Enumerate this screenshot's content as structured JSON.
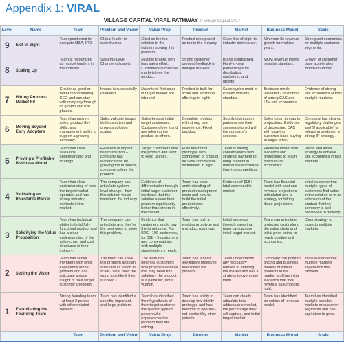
{
  "heading": {
    "appendix": "Appendix 1:",
    "title": "VIRAL"
  },
  "subtitle": {
    "main": "VILLAGE CAPITAL VIRAL PATHWAY",
    "copyright": "© Village Capital 2017"
  },
  "columns": [
    "Level",
    "Name",
    "Team",
    "Problem and Vision",
    "Value Prop",
    "Product",
    "Market",
    "Business Model",
    "Scale"
  ],
  "row_colors": [
    "#e8e3f0",
    "#e8e3f0",
    "#fef8dc",
    "#fef8dc",
    "#dff0dc",
    "#dff0dc",
    "#dff0dc",
    "#fce4e4",
    "#fce4e4"
  ],
  "rows": [
    {
      "level": "9",
      "name": "Exit in Sight",
      "cells": [
        "Team positioned to navigate M&A, IPO.",
        "Global leader in stated vision.",
        "Cited as the top solution in the industry solving this problem.",
        "Product recognized as top in the industry.",
        "Clear line-of-sight to industry dominance.",
        "Minimum 2x revenue growth for multiple years.",
        "Strong unit economics for multiple customer segments."
      ]
    },
    {
      "level": "8",
      "name": "Scaling Up",
      "cells": [
        "Team is recognized as market leaders in the industry.",
        "Systems-Level Change validated.",
        "Multiple brands with less sales effort. Customers in multiple markets love the product.",
        "Strong customer product feedback in multiple markets.",
        "Brand established. Hard-to-beat partnerships for distribution, marketing, and growth.",
        "MOM revenue meets industry standard.",
        "Growth of customer base accelerates month-on-month."
      ]
    },
    {
      "level": "7",
      "name": "Hitting Product-Market Fit",
      "cells": [
        "C-suite as good or better than founding CEO and can stay with company through its growth and exit phases.",
        "Impact is successfully validated.",
        "Majority of first sales in target market are inbound.",
        "Product is built for scale and additional offerings in sight.",
        "Sales cycles meet or exceed industry standard.",
        "Business model validated - Validation of strong CAC and LTV unit economics.",
        "Evidence of strong unit economics across multiple markets."
      ]
    },
    {
      "level": "6",
      "name": "Moving Beyond Early Adopters",
      "cells": [
        "Team has proven sales, product dev skills, and management ability to support a growing company.",
        "Sales validate impact tied to solution and grow as solution scales.",
        "Sales beyond initial target customers. Customers love it and are referring the product to others.",
        "Complete product with strong user experience. Fixed backlog.",
        "Supply/distribution partners see their success aligned with the company's success.",
        "Sales begin to map to projections. Evidence of decreasing CAC with growing customer base buying at target price.",
        "Company has cleared regulatory challenges and (if applicable) is releasing products; a strong IP strategy."
      ]
    },
    {
      "level": "5",
      "name": "Proving a Profitable Business Model",
      "cells": [
        "Team has clear sales/ops understanding and strategy.",
        "Evidence of impact tied to solution – company has evidence that by growing the business, company solves the problem.",
        "Target customers love the product and want to keep using it.",
        "Fully functional prototype with completion of product for wide commercial distribution in sight.",
        "Team is having conversations with strategic partners to bring product to market faster/cheaper than the competition.",
        "Financial model with evidence and projections to reach positive unit economics.",
        "Vision and initial strategy to achieve unit economics in two markets."
      ]
    },
    {
      "level": "4",
      "name": "Validating an Investable Market",
      "cells": [
        "Team has clear understanding of how the target market operates and has strong industry contacts in the market.",
        "The company can articulate system-level change - how this solution would transform the industry.",
        "Evidence of differentiation through initial target customer feedback that the solution solves their problem significantly better than others in the market.",
        "Team has clear understanding of product development costs and how to build the initial product cost-effectively.",
        "Evidence of $1B+ total addressable market.",
        "Team has financial model with cost and revenue projections articulated and a strategy for hitting these projections.",
        "Initial evidence that multiple types of customers find value in the solution or in an extension of the product that the company is well positioned to develop."
      ]
    },
    {
      "level": "3",
      "name": "Solidifying the Value Proposition",
      "cells": [
        "Team has technical ability to build fully functional product and has a clear understanding of the value chain and cost structures in their industry.",
        "The company can articulate why they're the best ones to solve this problem.",
        "Evidence that customers would pay the target price. For B2C - 100 customers, for B2B - 5 customers and conversations with multiple stakeholders in each.",
        "Team has built a working prototype and a product roadmap.",
        "Initial evidence through sales that team can capture initial target market.",
        "Team can articulate projected costs along the value chain and initial price points to reach positive unit economics.",
        "Clear strategy to move to multiple markets."
      ]
    },
    {
      "level": "2",
      "name": "Setting the Vision",
      "cells": [
        "Team has senior members with lived experience of the problem and can articulate unique insight of their target customer's problem.",
        "The team can solve this problem and can articulate its vision at scale - what does the world look like if they succeed?",
        "The team has potential customers who provide evidence that they need this solution - the product is a painkiller, not a vitamin.",
        "Team has a basic low-fidelity prototype that solves the problem.",
        "Team understands any regulatory hurdles to entering the market and has a strategy to overcome them.",
        "Company can point to pricing and business models of similar products in the market and has initial evidence that their revenue assumptions hold.",
        "Initial evidence that multiple markets experience this problem."
      ]
    },
    {
      "level": "1",
      "name": "Establishing the Founding Team",
      "cells": [
        "Strong founding team - at least 2 people with differentiated skillsets.",
        "Team has identified a specific, important, and large problem.",
        "Team has identified their hypothesis of their target customer - the specific type of person who experiences the problem they are solving.",
        "Team has ability to develop low-fidelity prototype and has freedom to operate - not blocked by other patents.",
        "Team can clearly articulate total addressable market, the percentage they will capture, and initial target market.",
        "Team has identified an outline of revenue model.",
        "Team has identified multiple possible markets or customer segments and has aspiration to grow."
      ]
    }
  ]
}
